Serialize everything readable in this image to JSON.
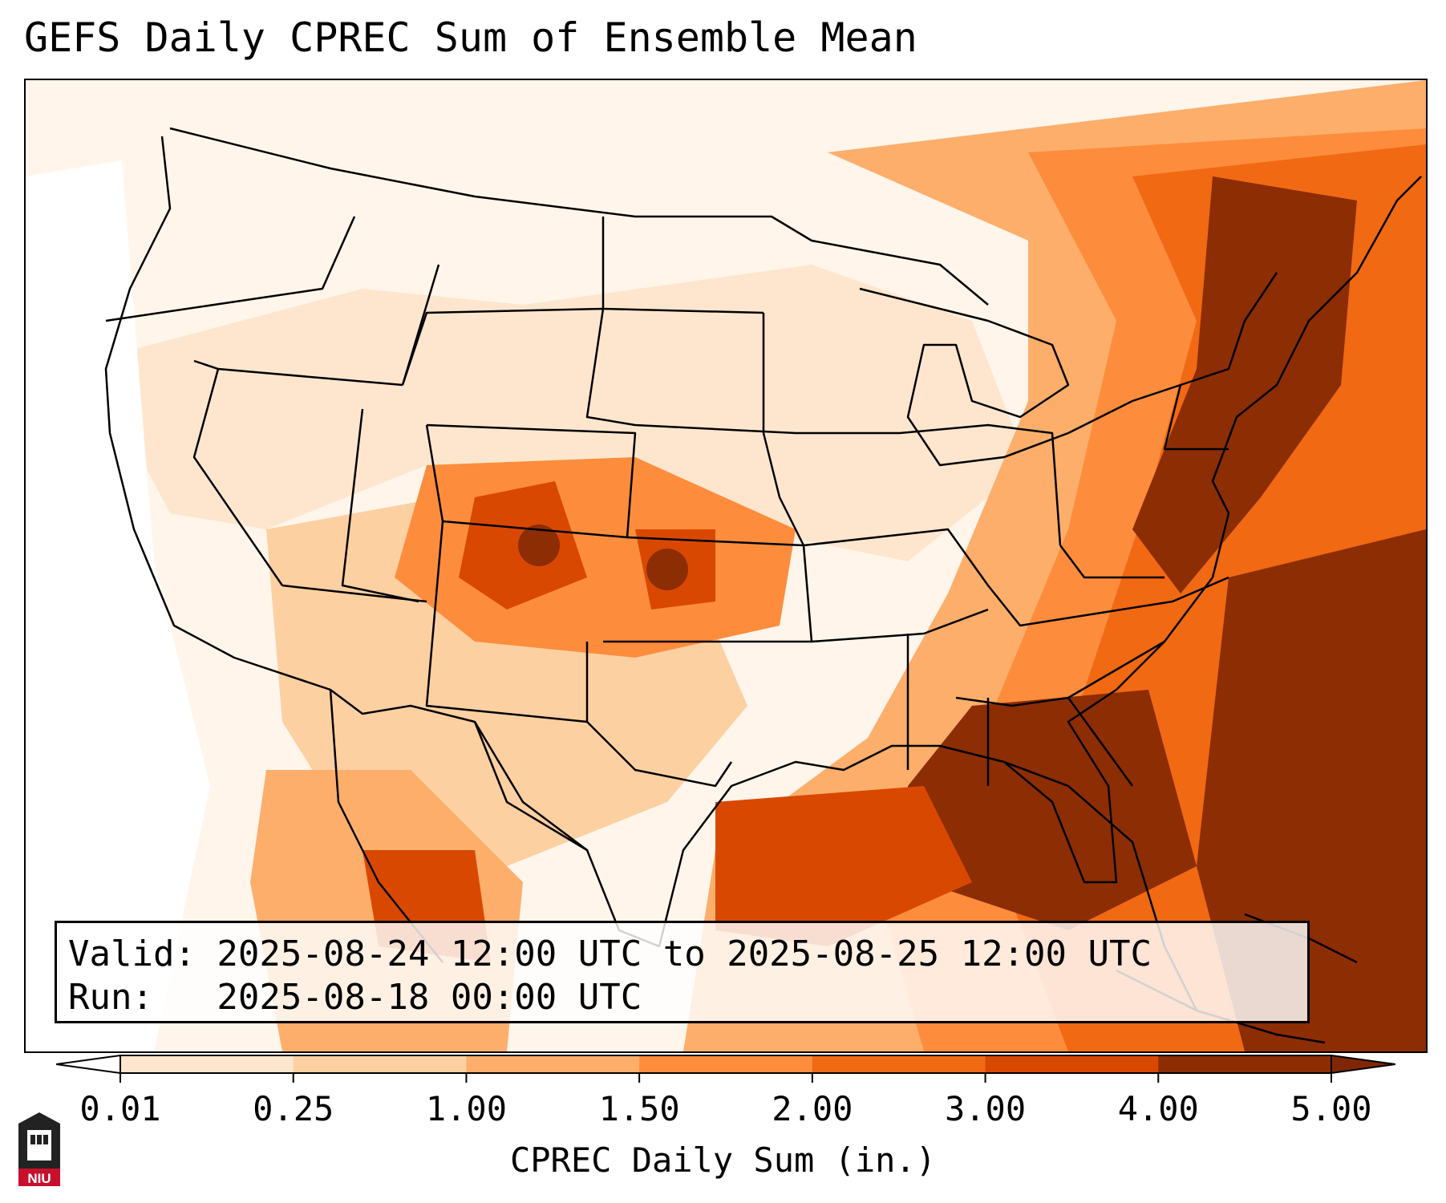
{
  "title": "GEFS Daily CPREC Sum of Ensemble Mean",
  "info_box": {
    "valid_line": "Valid: 2025-08-24 12:00 UTC to 2025-08-25 12:00 UTC",
    "run_line": "Run:   2025-08-18 00:00 UTC"
  },
  "colorbar": {
    "label": "CPREC Daily Sum (in.)",
    "ticks": [
      "0.01",
      "0.25",
      "1.00",
      "1.50",
      "2.00",
      "3.00",
      "4.00",
      "5.00"
    ],
    "colors": [
      "#fff5eb",
      "#fee6ce",
      "#fdd0a2",
      "#fdae6b",
      "#fd8d3c",
      "#f16913",
      "#d94801",
      "#8c2d04"
    ],
    "extend_low_color": "#ffffff",
    "extend_high_color": "#7f2704"
  },
  "map": {
    "projection": "Lambert conformal, CONUS",
    "borders_color": "#000000",
    "heavy_regions": [
      "Colorado/Kansas",
      "Northeast US",
      "Southeast US",
      "Gulf of Mexico",
      "Western Atlantic",
      "Northern Mexico"
    ]
  },
  "logo": {
    "text": "NIU",
    "icon": "niu-castle-logo-icon",
    "color": "#c8102e"
  }
}
